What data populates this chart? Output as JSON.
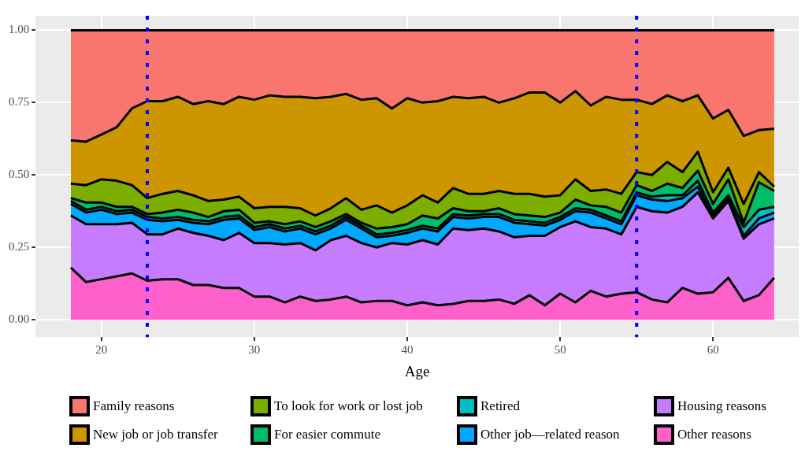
{
  "chart_data": {
    "type": "area",
    "stacked": true,
    "xlabel": "Age",
    "x": [
      18,
      19,
      20,
      21,
      22,
      23,
      24,
      25,
      26,
      27,
      28,
      29,
      30,
      31,
      32,
      33,
      34,
      35,
      36,
      37,
      38,
      39,
      40,
      41,
      42,
      43,
      44,
      45,
      46,
      47,
      48,
      49,
      50,
      51,
      52,
      53,
      54,
      55,
      56,
      57,
      58,
      59,
      60,
      61,
      62,
      63,
      64
    ],
    "xlim": [
      15.7,
      65.6
    ],
    "xticks": [
      20,
      30,
      40,
      50,
      60
    ],
    "ylim": [
      -0.06,
      1.05
    ],
    "yticks": [
      {
        "value": 0,
        "label": "0.00"
      },
      {
        "value": 0.25,
        "label": "0.25"
      },
      {
        "value": 0.5,
        "label": "0.50"
      },
      {
        "value": 0.75,
        "label": "0.75"
      },
      {
        "value": 1,
        "label": "1.00"
      }
    ],
    "grid": true,
    "legend": "bottom",
    "marker": "none",
    "ref_lines": [
      {
        "axis": "x",
        "value": 23,
        "color": "#0000ff",
        "line_style": "dotted"
      },
      {
        "axis": "x",
        "value": 55,
        "color": "#0000ff",
        "line_style": "dotted"
      }
    ],
    "series": [
      {
        "name": "Other reasons",
        "color": "#ff61cc",
        "values": [
          0.18,
          0.13,
          0.14,
          0.15,
          0.16,
          0.135,
          0.14,
          0.14,
          0.12,
          0.12,
          0.11,
          0.11,
          0.08,
          0.08,
          0.06,
          0.08,
          0.065,
          0.07,
          0.08,
          0.06,
          0.065,
          0.065,
          0.05,
          0.06,
          0.05,
          0.055,
          0.065,
          0.065,
          0.07,
          0.055,
          0.085,
          0.05,
          0.09,
          0.06,
          0.1,
          0.08,
          0.09,
          0.095,
          0.07,
          0.06,
          0.11,
          0.09,
          0.095,
          0.145,
          0.065,
          0.085,
          0.145
        ]
      },
      {
        "name": "Housing reasons",
        "color": "#c77cff",
        "values": [
          0.18,
          0.2,
          0.19,
          0.18,
          0.175,
          0.16,
          0.155,
          0.175,
          0.18,
          0.17,
          0.165,
          0.19,
          0.185,
          0.185,
          0.2,
          0.185,
          0.175,
          0.205,
          0.21,
          0.205,
          0.185,
          0.2,
          0.21,
          0.215,
          0.21,
          0.26,
          0.245,
          0.25,
          0.235,
          0.23,
          0.205,
          0.24,
          0.23,
          0.28,
          0.22,
          0.235,
          0.205,
          0.295,
          0.305,
          0.31,
          0.28,
          0.35,
          0.255,
          0.265,
          0.215,
          0.245,
          0.205
        ]
      },
      {
        "name": "Other job—related reason",
        "color": "#00a9ff",
        "values": [
          0.04,
          0.04,
          0.05,
          0.035,
          0.035,
          0.05,
          0.045,
          0.03,
          0.035,
          0.04,
          0.07,
          0.05,
          0.045,
          0.055,
          0.045,
          0.05,
          0.055,
          0.04,
          0.055,
          0.05,
          0.035,
          0.025,
          0.04,
          0.04,
          0.045,
          0.04,
          0.04,
          0.04,
          0.05,
          0.05,
          0.04,
          0.035,
          0.025,
          0.035,
          0.05,
          0.035,
          0.035,
          0.04,
          0.04,
          0.04,
          0.03,
          0.02,
          0.01,
          0.01,
          0.01,
          0.02,
          0.02
        ]
      },
      {
        "name": "Retired",
        "color": "#00bfc4",
        "values": [
          0.01,
          0.01,
          0.01,
          0.01,
          0.01,
          0.01,
          0.01,
          0.01,
          0.01,
          0.01,
          0.01,
          0.01,
          0.01,
          0.01,
          0.01,
          0.01,
          0.01,
          0.01,
          0.01,
          0.01,
          0.01,
          0.01,
          0.01,
          0.01,
          0.01,
          0.01,
          0.01,
          0.01,
          0.01,
          0.01,
          0.01,
          0.01,
          0.01,
          0.01,
          0.01,
          0.01,
          0.01,
          0.01,
          0.01,
          0.02,
          0.01,
          0.02,
          0.01,
          0.01,
          0.03,
          0.03,
          0.02
        ]
      },
      {
        "name": "For easier commute",
        "color": "#00be67",
        "values": [
          0.01,
          0.025,
          0.015,
          0.015,
          0.01,
          0.01,
          0.02,
          0.025,
          0.025,
          0.015,
          0.02,
          0.02,
          0.015,
          0.01,
          0.015,
          0.015,
          0.015,
          0.015,
          0.01,
          0.01,
          0.02,
          0.02,
          0.02,
          0.035,
          0.035,
          0.02,
          0.015,
          0.01,
          0.02,
          0.02,
          0.02,
          0.02,
          0.015,
          0.03,
          0.015,
          0.03,
          0.03,
          0.025,
          0.02,
          0.04,
          0.025,
          0.035,
          0.03,
          0.055,
          0.015,
          0.095,
          0.055
        ]
      },
      {
        "name": "To look for work or lost job",
        "color": "#7cae00",
        "values": [
          0.05,
          0.06,
          0.08,
          0.09,
          0.075,
          0.055,
          0.065,
          0.065,
          0.06,
          0.055,
          0.04,
          0.045,
          0.05,
          0.05,
          0.06,
          0.045,
          0.04,
          0.045,
          0.055,
          0.045,
          0.08,
          0.05,
          0.065,
          0.07,
          0.055,
          0.07,
          0.06,
          0.06,
          0.06,
          0.07,
          0.075,
          0.07,
          0.06,
          0.07,
          0.05,
          0.06,
          0.065,
          0.045,
          0.055,
          0.075,
          0.055,
          0.065,
          0.04,
          0.04,
          0.065,
          0.035,
          0.015
        ]
      },
      {
        "name": "New job or job transfer",
        "color": "#cd9600",
        "values": [
          0.15,
          0.15,
          0.155,
          0.185,
          0.265,
          0.335,
          0.32,
          0.325,
          0.315,
          0.345,
          0.33,
          0.345,
          0.375,
          0.385,
          0.38,
          0.385,
          0.405,
          0.385,
          0.36,
          0.38,
          0.37,
          0.36,
          0.37,
          0.32,
          0.35,
          0.315,
          0.33,
          0.335,
          0.305,
          0.33,
          0.35,
          0.36,
          0.32,
          0.305,
          0.295,
          0.32,
          0.325,
          0.25,
          0.245,
          0.23,
          0.245,
          0.195,
          0.255,
          0.2,
          0.235,
          0.145,
          0.2
        ]
      },
      {
        "name": "Family reasons",
        "color": "#f8766d",
        "values": [
          0.38,
          0.385,
          0.36,
          0.335,
          0.27,
          0.245,
          0.245,
          0.23,
          0.255,
          0.245,
          0.255,
          0.23,
          0.24,
          0.225,
          0.23,
          0.23,
          0.235,
          0.23,
          0.22,
          0.24,
          0.235,
          0.27,
          0.235,
          0.25,
          0.245,
          0.23,
          0.235,
          0.23,
          0.25,
          0.235,
          0.215,
          0.215,
          0.25,
          0.21,
          0.26,
          0.23,
          0.24,
          0.24,
          0.255,
          0.225,
          0.245,
          0.225,
          0.305,
          0.275,
          0.365,
          0.345,
          0.34
        ]
      }
    ]
  }
}
